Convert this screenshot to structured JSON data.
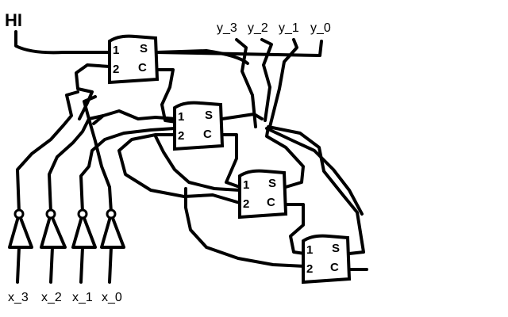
{
  "hi_label": "HI",
  "outputs": [
    "y_3",
    "y_2",
    "y_1",
    "y_0"
  ],
  "inputs": [
    "x_3",
    "x_2",
    "x_1",
    "x_0"
  ],
  "block_pins": {
    "top_left": "1",
    "top_right": "S",
    "bottom_left": "2",
    "bottom_right": "C"
  },
  "block_count": 4,
  "gate_count": 4
}
